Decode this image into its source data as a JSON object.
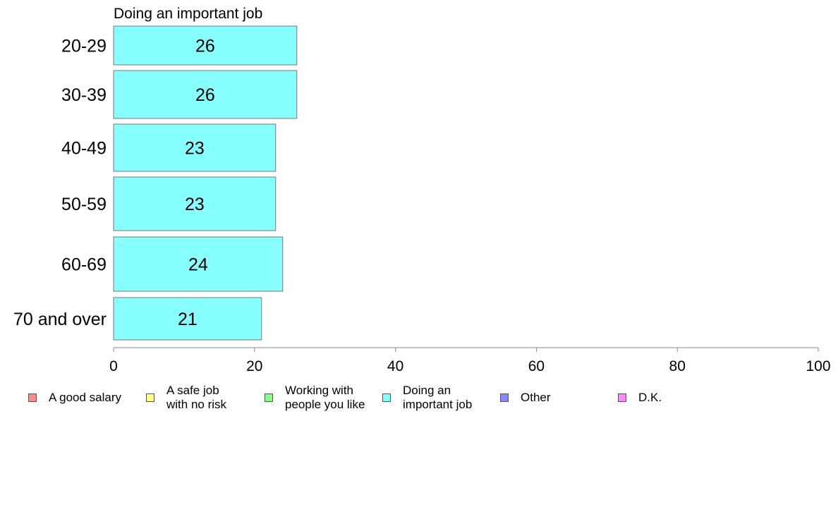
{
  "chart_data": {
    "type": "bar",
    "orientation": "horizontal",
    "title": "Doing an important job",
    "categories": [
      "20-29",
      "30-39",
      "40-49",
      "50-59",
      "60-69",
      "70 and over"
    ],
    "values": [
      26,
      26,
      23,
      23,
      24,
      21
    ],
    "data_labels": [
      "26",
      "26",
      "23",
      "23",
      "24",
      "21"
    ],
    "bar_color": "#88ffff",
    "xlim": [
      0,
      100
    ],
    "xticks": [
      "0",
      "20",
      "40",
      "60",
      "80",
      "100"
    ],
    "grid": false,
    "legend_position": "bottom",
    "legend": [
      {
        "label": "A good salary",
        "color": "#ff8888"
      },
      {
        "label": "A safe job\nwith no risk",
        "color": "#ffff88"
      },
      {
        "label": "Working with\npeople you like",
        "color": "#88ff88"
      },
      {
        "label": "Doing an\nimportant job",
        "color": "#88ffff"
      },
      {
        "label": "Other",
        "color": "#8888ff"
      },
      {
        "label": "D.K.",
        "color": "#ff88ff"
      }
    ]
  }
}
